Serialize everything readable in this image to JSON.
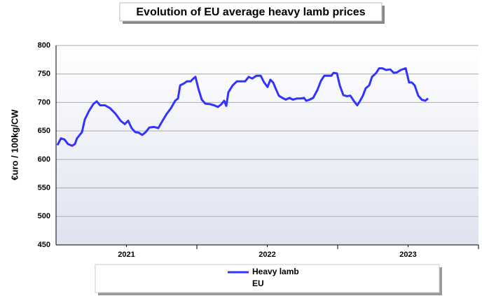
{
  "chart_data": {
    "type": "line",
    "title": "Evolution  of EU average heavy lamb prices",
    "y_label": "€uro / 100kg/CW",
    "xlim": [
      2021,
      2024
    ],
    "xticks": [
      {
        "value": 2021.5,
        "label": "2021"
      },
      {
        "value": 2022.5,
        "label": "2022"
      },
      {
        "value": 2023.5,
        "label": "2023"
      }
    ],
    "ylim": [
      450,
      800
    ],
    "yticks": [
      450,
      500,
      550,
      600,
      650,
      700,
      750,
      800
    ],
    "grid": true,
    "legend_note": "EU",
    "series": [
      {
        "name": "Heavy lamb",
        "color": "#3333ff",
        "x": [
          2021.01,
          2021.035,
          2021.06,
          2021.085,
          2021.114,
          2021.134,
          2021.149,
          2021.184,
          2021.204,
          2021.234,
          2021.264,
          2021.289,
          2021.313,
          2021.348,
          2021.383,
          2021.423,
          2021.458,
          2021.488,
          2021.512,
          2021.537,
          2021.562,
          2021.587,
          2021.612,
          2021.637,
          2021.662,
          2021.697,
          2021.726,
          2021.756,
          2021.786,
          2021.816,
          2021.846,
          2021.866,
          2021.881,
          2021.905,
          2021.93,
          2021.955,
          2021.975,
          2021.99,
          2022.01,
          2022.035,
          2022.06,
          2022.095,
          2022.124,
          2022.149,
          2022.174,
          2022.194,
          2022.209,
          2022.224,
          2022.254,
          2022.284,
          2022.313,
          2022.343,
          2022.368,
          2022.393,
          2022.423,
          2022.453,
          2022.478,
          2022.502,
          2022.522,
          2022.542,
          2022.562,
          2022.582,
          2022.607,
          2022.632,
          2022.657,
          2022.682,
          2022.711,
          2022.741,
          2022.761,
          2022.776,
          2022.801,
          2022.826,
          2022.856,
          2022.881,
          2022.905,
          2022.93,
          2022.955,
          2022.97,
          2022.995,
          2023.015,
          2023.04,
          2023.065,
          2023.09,
          2023.114,
          2023.139,
          2023.159,
          2023.179,
          2023.199,
          2023.224,
          2023.244,
          2023.274,
          2023.294,
          2023.318,
          2023.343,
          2023.373,
          2023.398,
          2023.423,
          2023.448,
          2023.483,
          2023.507,
          2023.527,
          2023.547,
          2023.572,
          2023.597,
          2023.622,
          2023.642
        ],
        "values": [
          625,
          637,
          635,
          627,
          624,
          627,
          637,
          648,
          670,
          685,
          697,
          702,
          695,
          695,
          690,
          680,
          668,
          662,
          668,
          655,
          648,
          647,
          643,
          648,
          656,
          657,
          655,
          668,
          680,
          690,
          703,
          707,
          730,
          733,
          737,
          737,
          742,
          745,
          725,
          705,
          698,
          697,
          695,
          692,
          697,
          703,
          694,
          718,
          730,
          737,
          737,
          737,
          745,
          742,
          747,
          747,
          735,
          727,
          740,
          735,
          723,
          712,
          708,
          705,
          708,
          705,
          707,
          707,
          708,
          703,
          705,
          708,
          722,
          738,
          747,
          747,
          747,
          752,
          751,
          730,
          713,
          711,
          712,
          703,
          695,
          703,
          712,
          725,
          730,
          745,
          752,
          760,
          760,
          757,
          758,
          752,
          753,
          757,
          760,
          735,
          735,
          730,
          712,
          705,
          703,
          707
        ]
      }
    ]
  }
}
